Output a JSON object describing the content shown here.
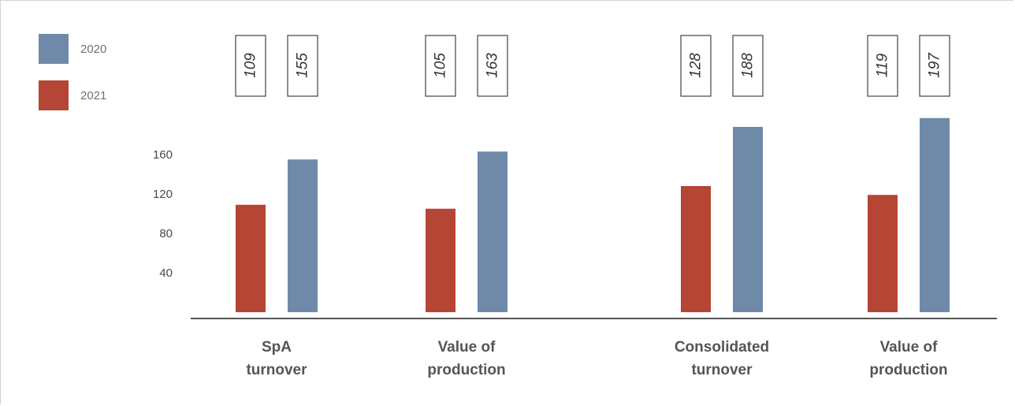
{
  "chart_data": {
    "type": "bar",
    "categories": [
      [
        "SpA",
        "turnover"
      ],
      [
        "Value of",
        "production"
      ],
      [
        "Consolidated",
        "turnover"
      ],
      [
        "Value of",
        "production"
      ]
    ],
    "series": [
      {
        "name": "2021",
        "color": "#b54534",
        "values": [
          109,
          105,
          128,
          119
        ]
      },
      {
        "name": "2020",
        "color": "#6e8aa8",
        "values": [
          155,
          163,
          188,
          197
        ]
      }
    ],
    "legend": {
      "placement": "top-left",
      "order": [
        "2020",
        "2021"
      ]
    },
    "yticks": [
      40,
      80,
      120,
      160
    ],
    "axis_color": "#555555",
    "title": "",
    "xlabel": "",
    "ylabel": ""
  }
}
